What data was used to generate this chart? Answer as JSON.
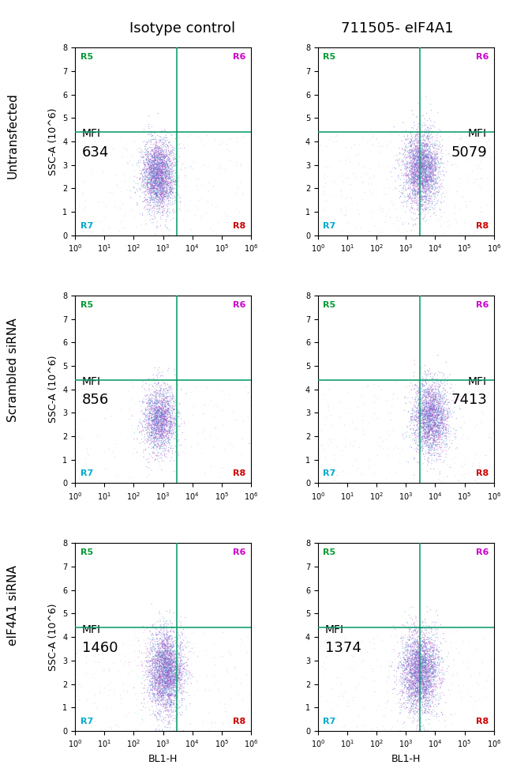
{
  "col_titles": [
    "Isotype control",
    "711505- eIF4A1"
  ],
  "row_titles": [
    "Untransfected",
    "Scrambled siRNA",
    "eIF4A1 siRNA"
  ],
  "mfi_values": [
    [
      "634",
      "5079"
    ],
    [
      "856",
      "7413"
    ],
    [
      "1460",
      "1374"
    ]
  ],
  "gate_x_log": 3.477,
  "gate_y": 4.4,
  "xmin": 1.0,
  "xmax": 1000000,
  "ymin": 0,
  "ymax": 8,
  "xlabel": "BL1-H",
  "ylabel": "SSC-A (10^6)",
  "R5_color": "#009933",
  "R6_color": "#cc00cc",
  "R7_color": "#00aacc",
  "R8_color": "#cc0000",
  "gate_color": "#009966",
  "figure_bg": "#ffffff",
  "scatter_params": [
    [
      {
        "log_x_mu": 2.85,
        "log_x_sig": 0.28,
        "y_mu": 2.55,
        "y_sig": 0.75,
        "n_main": 2800,
        "n_sparse": 200,
        "mfi_side": "left"
      },
      {
        "log_x_mu": 3.55,
        "log_x_sig": 0.3,
        "y_mu": 2.8,
        "y_sig": 0.8,
        "n_main": 2800,
        "n_sparse": 300,
        "mfi_side": "right"
      }
    ],
    [
      {
        "log_x_mu": 2.9,
        "log_x_sig": 0.28,
        "y_mu": 2.7,
        "y_sig": 0.72,
        "n_main": 2000,
        "n_sparse": 150,
        "mfi_side": "left"
      },
      {
        "log_x_mu": 3.85,
        "log_x_sig": 0.3,
        "y_mu": 2.8,
        "y_sig": 0.78,
        "n_main": 2500,
        "n_sparse": 250,
        "mfi_side": "right"
      }
    ],
    [
      {
        "log_x_mu": 3.1,
        "log_x_sig": 0.3,
        "y_mu": 2.5,
        "y_sig": 0.85,
        "n_main": 3200,
        "n_sparse": 250,
        "mfi_side": "left"
      },
      {
        "log_x_mu": 3.5,
        "log_x_sig": 0.32,
        "y_mu": 2.5,
        "y_sig": 0.85,
        "n_main": 3200,
        "n_sparse": 250,
        "mfi_side": "left"
      }
    ]
  ],
  "dot_colors": [
    "#aa44cc",
    "#7755cc",
    "#5599dd",
    "#33bbaa",
    "#dd55aa",
    "#4477ee"
  ],
  "dot_probs": [
    0.32,
    0.28,
    0.18,
    0.1,
    0.07,
    0.05
  ],
  "dot_size": 0.8,
  "dot_alpha": 0.55,
  "title_fontsize": 13,
  "row_fontsize": 11,
  "mfi_label_fontsize": 10,
  "mfi_value_fontsize": 13,
  "quadrant_fontsize": 8,
  "axis_tick_fontsize": 7,
  "axis_label_fontsize": 9
}
